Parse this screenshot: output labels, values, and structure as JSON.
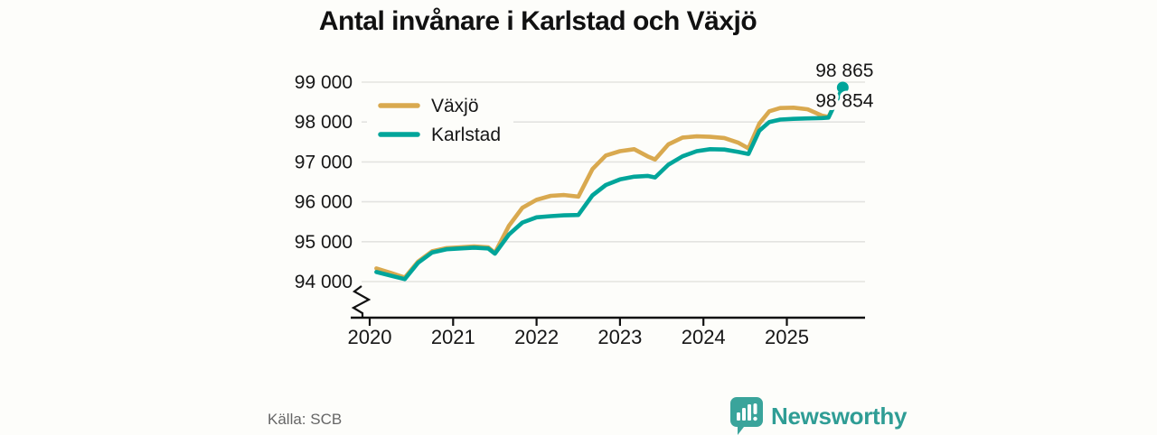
{
  "title": "Antal invånare i Karlstad och Växjö",
  "source": "Källa: SCB",
  "branding": {
    "name": "Newsworthy",
    "badge_color": "#3aa49b",
    "text_color": "#2f9d95"
  },
  "chart_data": {
    "type": "line",
    "title": "Antal invånare i Karlstad och Växjö",
    "xlabel": "",
    "ylabel": "",
    "x_unit": "year (decimal = month)",
    "xticks": [
      2020,
      2021,
      2022,
      2023,
      2024,
      2025
    ],
    "xtick_labels": [
      "2020",
      "2021",
      "2022",
      "2023",
      "2024",
      "2025"
    ],
    "yticks": [
      94000,
      95000,
      96000,
      97000,
      98000,
      99000
    ],
    "ytick_labels": [
      "94 000",
      "95 000",
      "96 000",
      "97 000",
      "98 000",
      "99 000"
    ],
    "ylim": [
      94000,
      99000
    ],
    "axis_break": true,
    "grid": "horizontal",
    "gridline_color": "#e3e3e0",
    "axis_color": "#111111",
    "legend_position": "top-left-inside",
    "series": [
      {
        "name": "Växjö",
        "color": "#d9a94f",
        "end_label": "98 854",
        "end_dot": false,
        "points": [
          [
            2020.08,
            94330
          ],
          [
            2020.25,
            94220
          ],
          [
            2020.42,
            94100
          ],
          [
            2020.58,
            94500
          ],
          [
            2020.75,
            94760
          ],
          [
            2020.92,
            94840
          ],
          [
            2021.08,
            94860
          ],
          [
            2021.25,
            94880
          ],
          [
            2021.42,
            94860
          ],
          [
            2021.5,
            94720
          ],
          [
            2021.67,
            95400
          ],
          [
            2021.83,
            95850
          ],
          [
            2022.0,
            96050
          ],
          [
            2022.17,
            96150
          ],
          [
            2022.33,
            96170
          ],
          [
            2022.5,
            96130
          ],
          [
            2022.67,
            96820
          ],
          [
            2022.83,
            97160
          ],
          [
            2023.0,
            97270
          ],
          [
            2023.17,
            97320
          ],
          [
            2023.33,
            97140
          ],
          [
            2023.42,
            97060
          ],
          [
            2023.58,
            97440
          ],
          [
            2023.75,
            97610
          ],
          [
            2023.92,
            97640
          ],
          [
            2024.08,
            97630
          ],
          [
            2024.25,
            97600
          ],
          [
            2024.42,
            97480
          ],
          [
            2024.54,
            97340
          ],
          [
            2024.67,
            97960
          ],
          [
            2024.79,
            98270
          ],
          [
            2024.92,
            98350
          ],
          [
            2025.08,
            98360
          ],
          [
            2025.25,
            98320
          ],
          [
            2025.42,
            98160
          ],
          [
            2025.5,
            98130
          ],
          [
            2025.67,
            98854
          ]
        ]
      },
      {
        "name": "Karlstad",
        "color": "#00a59a",
        "end_label": "98 865",
        "end_dot": true,
        "points": [
          [
            2020.08,
            94240
          ],
          [
            2020.25,
            94150
          ],
          [
            2020.42,
            94060
          ],
          [
            2020.58,
            94470
          ],
          [
            2020.75,
            94730
          ],
          [
            2020.92,
            94810
          ],
          [
            2021.08,
            94830
          ],
          [
            2021.25,
            94850
          ],
          [
            2021.42,
            94830
          ],
          [
            2021.5,
            94700
          ],
          [
            2021.67,
            95180
          ],
          [
            2021.83,
            95480
          ],
          [
            2022.0,
            95610
          ],
          [
            2022.17,
            95640
          ],
          [
            2022.33,
            95660
          ],
          [
            2022.5,
            95670
          ],
          [
            2022.67,
            96160
          ],
          [
            2022.83,
            96420
          ],
          [
            2023.0,
            96560
          ],
          [
            2023.17,
            96630
          ],
          [
            2023.33,
            96650
          ],
          [
            2023.42,
            96610
          ],
          [
            2023.58,
            96930
          ],
          [
            2023.75,
            97140
          ],
          [
            2023.92,
            97270
          ],
          [
            2024.08,
            97320
          ],
          [
            2024.25,
            97310
          ],
          [
            2024.42,
            97250
          ],
          [
            2024.54,
            97200
          ],
          [
            2024.67,
            97780
          ],
          [
            2024.79,
            98000
          ],
          [
            2024.92,
            98060
          ],
          [
            2025.08,
            98080
          ],
          [
            2025.25,
            98090
          ],
          [
            2025.42,
            98100
          ],
          [
            2025.5,
            98110
          ],
          [
            2025.67,
            98865
          ]
        ]
      }
    ]
  }
}
